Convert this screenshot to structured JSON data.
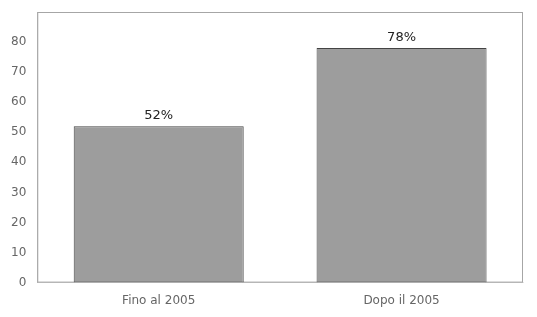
{
  "chart_data": {
    "type": "bar",
    "categories": [
      "Fino al 2005",
      "Dopo il 2005"
    ],
    "values": [
      52,
      78
    ],
    "value_labels": [
      "52%",
      "78%"
    ],
    "data_labels": true,
    "color": "#9d9d9d",
    "ylim": [
      0,
      90
    ],
    "yticks": [
      0,
      10,
      20,
      30,
      40,
      50,
      60,
      70,
      80
    ],
    "grid": false
  }
}
